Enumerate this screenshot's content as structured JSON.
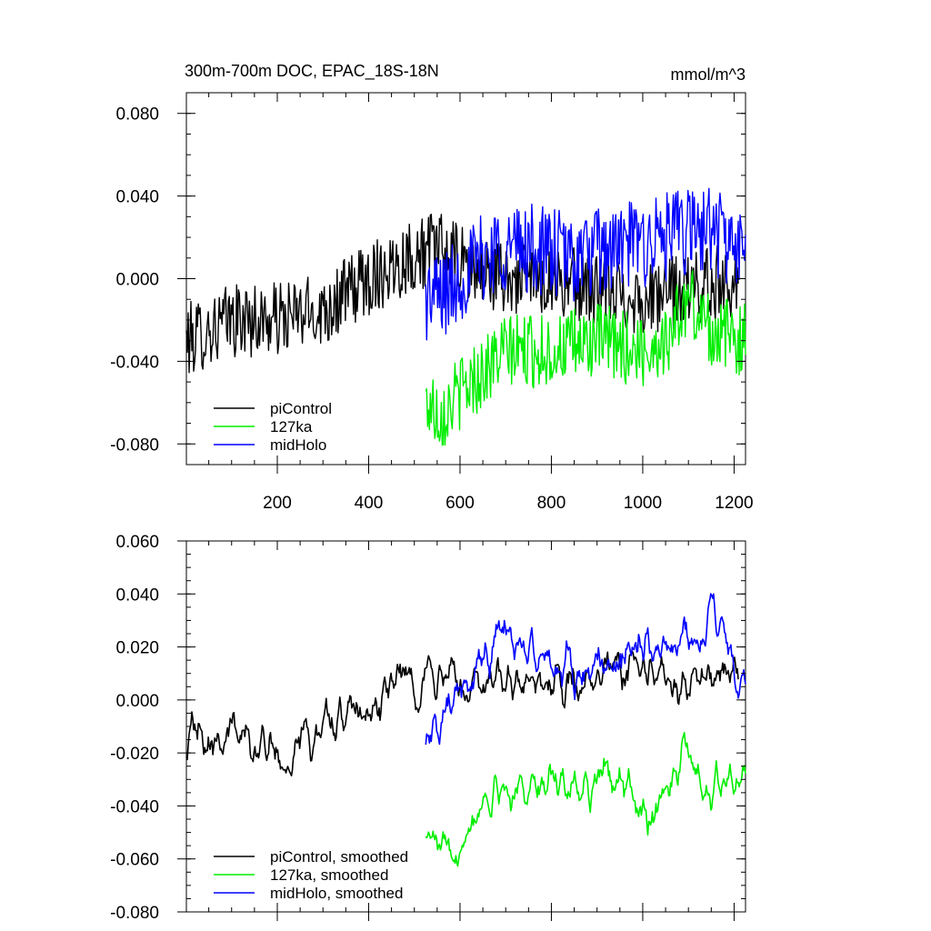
{
  "chart_data": [
    {
      "type": "line",
      "title": "300m-700m DOC, EPAC_18S-18N",
      "units_label": "mmol/m^3",
      "xlabel": "",
      "ylabel": "",
      "xlim": [
        1,
        1225
      ],
      "ylim": [
        -0.09,
        0.09
      ],
      "x_ticks": [
        200,
        400,
        600,
        800,
        1000,
        1200
      ],
      "x_tick_labels": [
        "200",
        "400",
        "600",
        "800",
        "1000",
        "1200"
      ],
      "y_ticks": [
        -0.08,
        -0.04,
        0.0,
        0.04,
        0.08
      ],
      "y_tick_labels": [
        "-0.080",
        "-0.040",
        "0.000",
        "0.040",
        "0.080"
      ],
      "legend_position": "bottom-left",
      "series": [
        {
          "name": "piControl",
          "color": "#000000",
          "anchors": [
            [
              1,
              -0.03
            ],
            [
              100,
              -0.02
            ],
            [
              200,
              -0.02
            ],
            [
              300,
              -0.015
            ],
            [
              400,
              0.0
            ],
            [
              480,
              0.01
            ],
            [
              550,
              0.015
            ],
            [
              620,
              0.005
            ],
            [
              700,
              0.0
            ],
            [
              800,
              0.0
            ],
            [
              900,
              -0.005
            ],
            [
              1000,
              -0.01
            ],
            [
              1100,
              -0.005
            ],
            [
              1210,
              0.0
            ]
          ],
          "amplitude": 0.018
        },
        {
          "name": "127ka",
          "color": "#00ee00",
          "anchors": [
            [
              525,
              -0.06
            ],
            [
              560,
              -0.065
            ],
            [
              600,
              -0.055
            ],
            [
              650,
              -0.045
            ],
            [
              700,
              -0.035
            ],
            [
              800,
              -0.035
            ],
            [
              900,
              -0.03
            ],
            [
              1000,
              -0.035
            ],
            [
              1050,
              -0.03
            ],
            [
              1100,
              -0.01
            ],
            [
              1150,
              -0.025
            ],
            [
              1225,
              -0.03
            ]
          ],
          "amplitude": 0.018
        },
        {
          "name": "midHolo",
          "color": "#0000ff",
          "anchors": [
            [
              525,
              -0.01
            ],
            [
              580,
              -0.005
            ],
            [
              620,
              0.005
            ],
            [
              680,
              0.015
            ],
            [
              750,
              0.015
            ],
            [
              850,
              0.01
            ],
            [
              950,
              0.015
            ],
            [
              1050,
              0.02
            ],
            [
              1150,
              0.025
            ],
            [
              1225,
              0.01
            ]
          ],
          "amplitude": 0.022
        }
      ]
    },
    {
      "type": "line",
      "title": "",
      "xlabel": "",
      "ylabel": "",
      "xlim": [
        1,
        1225
      ],
      "ylim": [
        -0.08,
        0.06
      ],
      "x_ticks": [
        200,
        400,
        600,
        800,
        1000,
        1200
      ],
      "y_ticks": [
        -0.08,
        -0.06,
        -0.04,
        -0.02,
        0.0,
        0.02,
        0.04,
        0.06
      ],
      "y_tick_labels": [
        "-0.080",
        "-0.060",
        "-0.040",
        "-0.020",
        "0.000",
        "0.020",
        "0.040",
        "0.060"
      ],
      "legend_position": "bottom-left",
      "series": [
        {
          "name": "piControl, smoothed",
          "color": "#000000",
          "anchors": [
            [
              1,
              -0.012
            ],
            [
              100,
              -0.012
            ],
            [
              220,
              -0.02
            ],
            [
              300,
              -0.01
            ],
            [
              400,
              -0.005
            ],
            [
              480,
              0.01
            ],
            [
              550,
              0.008
            ],
            [
              620,
              0.005
            ],
            [
              700,
              0.005
            ],
            [
              800,
              0.005
            ],
            [
              900,
              0.008
            ],
            [
              1000,
              0.012
            ],
            [
              1100,
              0.005
            ],
            [
              1210,
              0.01
            ]
          ],
          "amplitude": 0.009
        },
        {
          "name": "127ka, smoothed",
          "color": "#00ee00",
          "anchors": [
            [
              525,
              -0.05
            ],
            [
              570,
              -0.06
            ],
            [
              620,
              -0.045
            ],
            [
              660,
              -0.035
            ],
            [
              750,
              -0.032
            ],
            [
              850,
              -0.032
            ],
            [
              950,
              -0.028
            ],
            [
              1000,
              -0.045
            ],
            [
              1050,
              -0.035
            ],
            [
              1100,
              -0.02
            ],
            [
              1150,
              -0.035
            ],
            [
              1225,
              -0.028
            ]
          ],
          "amplitude": 0.008
        },
        {
          "name": "midHolo, smoothed",
          "color": "#0000ff",
          "anchors": [
            [
              525,
              -0.012
            ],
            [
              600,
              0.0
            ],
            [
              680,
              0.025
            ],
            [
              750,
              0.018
            ],
            [
              850,
              0.008
            ],
            [
              950,
              0.015
            ],
            [
              1000,
              0.02
            ],
            [
              1100,
              0.022
            ],
            [
              1150,
              0.03
            ],
            [
              1225,
              0.005
            ]
          ],
          "amplitude": 0.009
        }
      ]
    }
  ]
}
